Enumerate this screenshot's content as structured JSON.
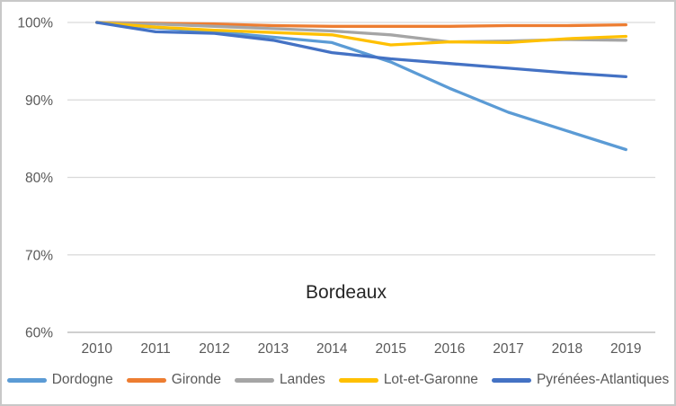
{
  "chart_data": {
    "type": "line",
    "title": "Bordeaux",
    "categories": [
      "2010",
      "2011",
      "2012",
      "2013",
      "2014",
      "2015",
      "2016",
      "2017",
      "2018",
      "2019"
    ],
    "series": [
      {
        "name": "Dordogne",
        "color": "#5B9BD5",
        "values": [
          100,
          99.3,
          98.8,
          98.1,
          97.4,
          94.9,
          91.5,
          88.4,
          86.0,
          83.6
        ]
      },
      {
        "name": "Gironde",
        "color": "#ED7D31",
        "values": [
          100,
          99.9,
          99.8,
          99.6,
          99.5,
          99.5,
          99.5,
          99.6,
          99.6,
          99.7
        ]
      },
      {
        "name": "Landes",
        "color": "#A5A5A5",
        "values": [
          100,
          99.8,
          99.5,
          99.2,
          98.9,
          98.4,
          97.5,
          97.6,
          97.8,
          97.7
        ]
      },
      {
        "name": "Lot-et-Garonne",
        "color": "#FFC000",
        "values": [
          100,
          99.4,
          99.0,
          98.7,
          98.4,
          97.1,
          97.5,
          97.4,
          97.9,
          98.2
        ]
      },
      {
        "name": "Pyrénées-Atlantiques",
        "color": "#4472C4",
        "values": [
          100,
          98.8,
          98.6,
          97.7,
          96.1,
          95.3,
          94.7,
          94.1,
          93.5,
          93.0
        ]
      }
    ],
    "ylim": [
      60,
      100
    ],
    "ytick_step": 10,
    "ytick_labels": [
      "100%",
      "90%",
      "80%",
      "70%",
      "60%"
    ],
    "grid": true,
    "legend_position": "bottom",
    "colors": {
      "gridline": "#d9d9d9",
      "axis_line": "#bfbfbf",
      "tick_label": "#595959",
      "title_text": "#262626",
      "legend_text": "#595959",
      "frame_border": "#c8c8c8",
      "background": "#ffffff"
    }
  }
}
